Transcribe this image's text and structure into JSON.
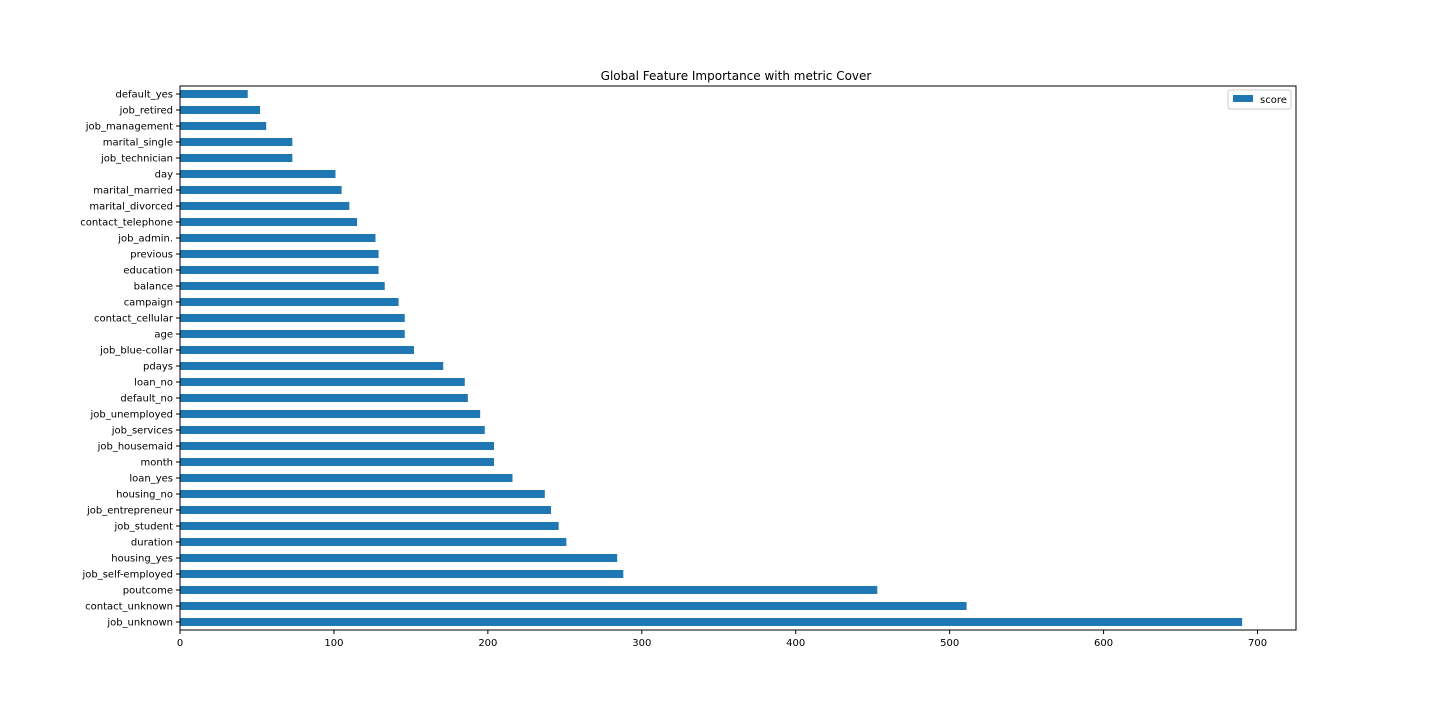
{
  "colors": {
    "bar": "#1f77b4",
    "axis": "#000000",
    "background": "#ffffff",
    "legend_border": "#cccccc"
  },
  "chart_data": {
    "type": "bar",
    "orientation": "horizontal",
    "title": "Global Feature Importance with metric Cover",
    "xlabel": "",
    "ylabel": "",
    "xlim": [
      0,
      725
    ],
    "xticks": [
      0,
      100,
      200,
      300,
      400,
      500,
      600,
      700
    ],
    "grid": false,
    "legend_placement": "top-right",
    "categories": [
      "default_yes",
      "job_retired",
      "job_management",
      "marital_single",
      "job_technician",
      "day",
      "marital_married",
      "marital_divorced",
      "contact_telephone",
      "job_admin.",
      "previous",
      "education",
      "balance",
      "campaign",
      "contact_cellular",
      "age",
      "job_blue-collar",
      "pdays",
      "loan_no",
      "default_no",
      "job_unemployed",
      "job_services",
      "job_housemaid",
      "month",
      "loan_yes",
      "housing_no",
      "job_entrepreneur",
      "job_student",
      "duration",
      "housing_yes",
      "job_self-employed",
      "poutcome",
      "contact_unknown",
      "job_unknown"
    ],
    "series": [
      {
        "name": "score",
        "values": [
          44,
          52,
          56,
          73,
          73,
          101,
          105,
          110,
          115,
          127,
          129,
          129,
          133,
          142,
          146,
          146,
          152,
          171,
          185,
          187,
          195,
          198,
          204,
          204,
          216,
          237,
          241,
          246,
          251,
          284,
          288,
          453,
          511,
          690
        ]
      }
    ]
  }
}
